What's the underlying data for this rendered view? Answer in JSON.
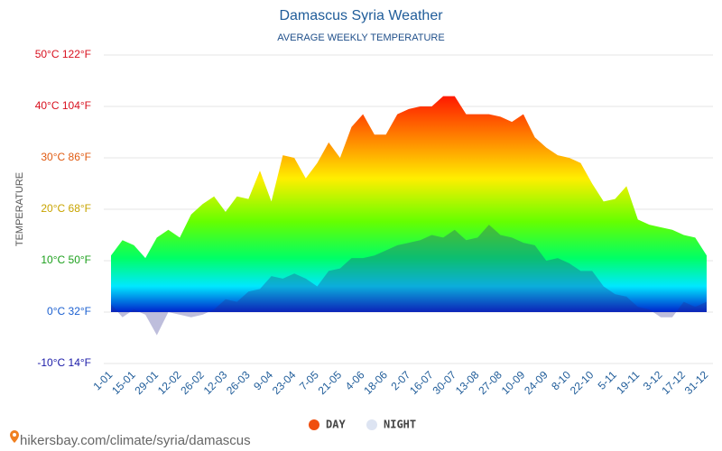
{
  "chart_data": {
    "type": "area",
    "title": "Damascus Syria Weather",
    "subtitle": "AVERAGE WEEKLY TEMPERATURE",
    "y_label": "TEMPERATURE",
    "categories": [
      "1-01",
      null,
      "15-01",
      null,
      "29-01",
      null,
      "12-02",
      null,
      "26-02",
      null,
      "12-03",
      null,
      "26-03",
      null,
      "9-04",
      null,
      "23-04",
      null,
      "7-05",
      null,
      "21-05",
      null,
      "4-06",
      null,
      "18-06",
      null,
      "2-07",
      null,
      "16-07",
      null,
      "30-07",
      null,
      "13-08",
      null,
      "27-08",
      null,
      "10-09",
      null,
      "24-09",
      null,
      "8-10",
      null,
      "22-10",
      null,
      "5-11",
      null,
      "19-11",
      null,
      "3-12",
      null,
      "17-12",
      null,
      "31-12"
    ],
    "series": [
      {
        "name": "DAY",
        "color": "#f04e0f",
        "values": [
          11,
          14,
          13,
          10.5,
          14.5,
          16,
          14.5,
          19,
          21,
          22.5,
          19.5,
          22.5,
          22,
          27.5,
          21.5,
          30.5,
          30,
          26,
          29,
          33,
          30,
          36,
          38.5,
          34.5,
          34.5,
          38.5,
          39.5,
          40,
          40,
          42,
          42,
          38.5,
          38.5,
          38.5,
          38,
          37,
          38.5,
          34,
          32,
          30.5,
          30,
          29,
          25,
          21.5,
          22,
          24.5,
          18,
          17,
          16.5,
          16,
          15,
          14.5,
          11
        ]
      },
      {
        "name": "NIGHT",
        "color": "#dde4f2",
        "values": [
          1.5,
          -1,
          0.5,
          -0.5,
          -4.5,
          0,
          -0.5,
          -1,
          -0.5,
          0.5,
          2.5,
          2,
          4,
          4.5,
          7,
          6.5,
          7.5,
          6.5,
          5,
          8,
          8.5,
          10.5,
          10.5,
          11,
          12,
          13,
          13.5,
          14,
          15,
          14.5,
          16,
          14,
          14.5,
          17,
          15,
          14.5,
          13.5,
          13,
          10,
          10.5,
          9.5,
          8,
          8,
          5,
          3.5,
          3,
          1,
          0.5,
          -1,
          -1,
          2,
          1,
          2
        ]
      }
    ],
    "ylim": [
      -10,
      50
    ],
    "yticks": [
      {
        "value": -10,
        "label": "-10°C 14°F"
      },
      {
        "value": 0,
        "label": "0°C 32°F"
      },
      {
        "value": 10,
        "label": "10°C 50°F"
      },
      {
        "value": 20,
        "label": "20°C 68°F"
      },
      {
        "value": 30,
        "label": "30°C 86°F"
      },
      {
        "value": 40,
        "label": "40°C 104°F"
      },
      {
        "value": 50,
        "label": "50°C 122°F"
      }
    ],
    "ytick_colors": [
      "#1a1aa8",
      "#1a5fd0",
      "#1ca01c",
      "#c8a400",
      "#e05a10",
      "#d8101e",
      "#d8101e"
    ],
    "grid": true,
    "legend": "bottom",
    "source": "hikersbay.com/climate/syria/damascus"
  }
}
